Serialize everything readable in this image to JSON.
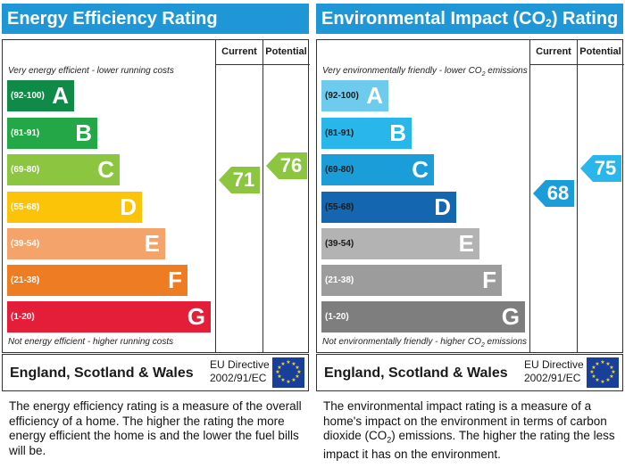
{
  "colors": {
    "title_bar": "#1f97d6",
    "ee_bands": [
      "#0f8a47",
      "#24a847",
      "#8cc53f",
      "#fbc408",
      "#f4a46a",
      "#ee7c23",
      "#e41d38"
    ],
    "ei_bands": [
      "#6fcbee",
      "#29b6ea",
      "#1a9dd9",
      "#1466b0",
      "#b3b3b3",
      "#9c9c9c",
      "#7e7e7e"
    ],
    "eu_flag": "#1a3f9a",
    "eu_stars": "#f5d90a"
  },
  "energy": {
    "title": "Energy Efficiency Rating",
    "current_label": "Current",
    "potential_label": "Potential",
    "top_note": "Very energy efficient - lower running costs",
    "bottom_note": "Not energy efficient - higher running costs",
    "bands": [
      {
        "range": "(92-100)",
        "letter": "A"
      },
      {
        "range": "(81-91)",
        "letter": "B"
      },
      {
        "range": "(69-80)",
        "letter": "C"
      },
      {
        "range": "(55-68)",
        "letter": "D"
      },
      {
        "range": "(39-54)",
        "letter": "E"
      },
      {
        "range": "(21-38)",
        "letter": "F"
      },
      {
        "range": "(1-20)",
        "letter": "G"
      }
    ],
    "current": "71",
    "potential": "76",
    "country": "England, Scotland & Wales",
    "directive_line1": "EU Directive",
    "directive_line2": "2002/91/EC",
    "description": "The energy efficiency rating is a measure of the overall efficiency of a home. The higher the rating the more energy efficient the home is and the lower the fuel bills will be."
  },
  "environment": {
    "title_part1": "Environmental Impact (CO",
    "title_sub": "2",
    "title_part2": ") Rating",
    "current_label": "Current",
    "potential_label": "Potential",
    "top_note_part1": "Very environmentally friendly - lower CO",
    "top_note_sub": "2",
    "top_note_part2": " emissions",
    "bottom_note_part1": "Not environmentally friendly - higher CO",
    "bottom_note_sub": "2",
    "bottom_note_part2": " emissions",
    "bands": [
      {
        "range": "(92-100)",
        "letter": "A"
      },
      {
        "range": "(81-91)",
        "letter": "B"
      },
      {
        "range": "(69-80)",
        "letter": "C"
      },
      {
        "range": "(55-68)",
        "letter": "D"
      },
      {
        "range": "(39-54)",
        "letter": "E"
      },
      {
        "range": "(21-38)",
        "letter": "F"
      },
      {
        "range": "(1-20)",
        "letter": "G"
      }
    ],
    "current": "68",
    "potential": "75",
    "country": "England, Scotland & Wales",
    "directive_line1": "EU Directive",
    "directive_line2": "2002/91/EC",
    "description_part1": "The environmental impact rating is a measure of a home's impact on the environment in terms of carbon dioxide (CO",
    "description_sub": "2",
    "description_part2": ") emissions. The higher the rating the less impact it has on the environment."
  }
}
